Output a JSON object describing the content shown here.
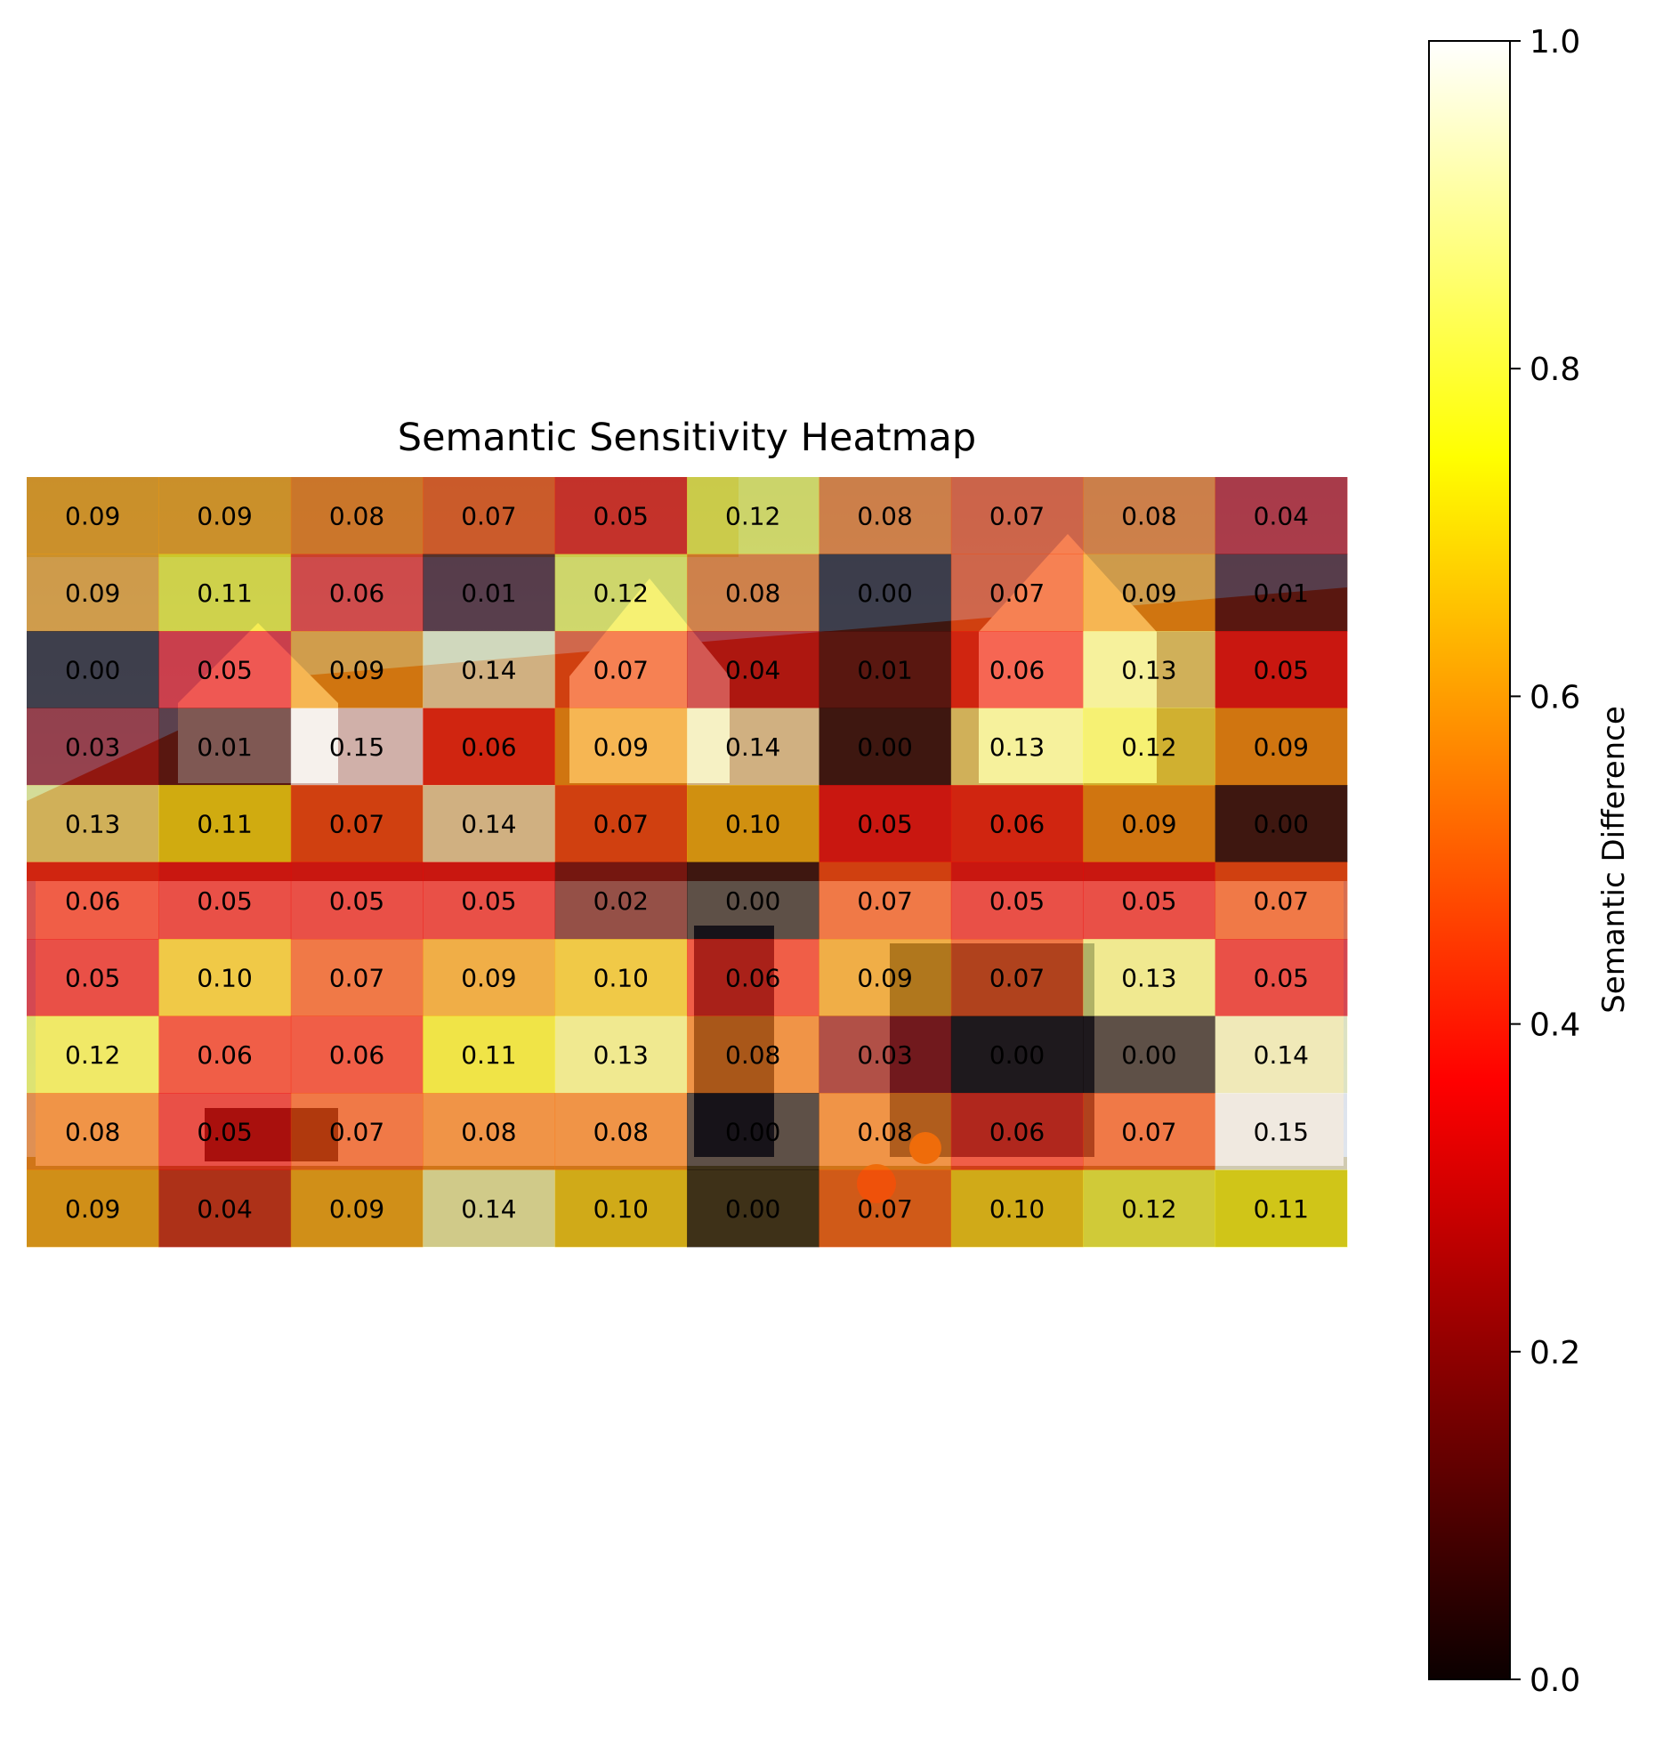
{
  "chart_data": {
    "type": "heatmap",
    "title": "Semantic Sensitivity Heatmap",
    "rows": 10,
    "cols": 10,
    "values": [
      [
        0.09,
        0.09,
        0.08,
        0.07,
        0.05,
        0.12,
        0.08,
        0.07,
        0.08,
        0.04
      ],
      [
        0.09,
        0.11,
        0.06,
        0.01,
        0.12,
        0.08,
        0.0,
        0.07,
        0.09,
        0.01
      ],
      [
        0.0,
        0.05,
        0.09,
        0.14,
        0.07,
        0.04,
        0.01,
        0.06,
        0.13,
        0.05
      ],
      [
        0.03,
        0.01,
        0.15,
        0.06,
        0.09,
        0.14,
        0.0,
        0.13,
        0.12,
        0.09
      ],
      [
        0.13,
        0.11,
        0.07,
        0.14,
        0.07,
        0.1,
        0.05,
        0.06,
        0.09,
        0.0
      ],
      [
        0.06,
        0.05,
        0.05,
        0.05,
        0.02,
        0.0,
        0.07,
        0.05,
        0.05,
        0.07
      ],
      [
        0.05,
        0.1,
        0.07,
        0.09,
        0.1,
        0.06,
        0.09,
        0.07,
        0.13,
        0.05
      ],
      [
        0.12,
        0.06,
        0.06,
        0.11,
        0.13,
        0.08,
        0.03,
        0.0,
        0.0,
        0.14
      ],
      [
        0.08,
        0.05,
        0.07,
        0.08,
        0.08,
        0.0,
        0.08,
        0.06,
        0.07,
        0.15
      ],
      [
        0.09,
        0.04,
        0.09,
        0.14,
        0.1,
        0.0,
        0.07,
        0.1,
        0.12,
        0.11
      ]
    ],
    "cell_labels": [
      [
        "0.09",
        "0.09",
        "0.08",
        "0.07",
        "0.05",
        "0.12",
        "0.08",
        "0.07",
        "0.08",
        "0.04"
      ],
      [
        "0.09",
        "0.11",
        "0.06",
        "0.01",
        "0.12",
        "0.08",
        "0.00",
        "0.07",
        "0.09",
        "0.01"
      ],
      [
        "0.00",
        "0.05",
        "0.09",
        "0.14",
        "0.07",
        "0.04",
        "0.01",
        "0.06",
        "0.13",
        "0.05"
      ],
      [
        "0.03",
        "0.01",
        "0.15",
        "0.06",
        "0.09",
        "0.14",
        "0.00",
        "0.13",
        "0.12",
        "0.09"
      ],
      [
        "0.13",
        "0.11",
        "0.07",
        "0.14",
        "0.07",
        "0.10",
        "0.05",
        "0.06",
        "0.09",
        "0.00"
      ],
      [
        "0.06",
        "0.05",
        "0.05",
        "0.05",
        "0.02",
        "0.00",
        "0.07",
        "0.05",
        "0.05",
        "0.07"
      ],
      [
        "0.05",
        "0.10",
        "0.07",
        "0.09",
        "0.10",
        "0.06",
        "0.09",
        "0.07",
        "0.13",
        "0.05"
      ],
      [
        "0.12",
        "0.06",
        "0.06",
        "0.11",
        "0.13",
        "0.08",
        "0.03",
        "0.00",
        "0.00",
        "0.14"
      ],
      [
        "0.08",
        "0.05",
        "0.07",
        "0.08",
        "0.08",
        "0.00",
        "0.08",
        "0.06",
        "0.07",
        "0.15"
      ],
      [
        "0.09",
        "0.04",
        "0.09",
        "0.14",
        "0.10",
        "0.00",
        "0.07",
        "0.10",
        "0.12",
        "0.11"
      ]
    ],
    "colormap": "hot",
    "colorbar": {
      "label": "Semantic Difference",
      "range": [
        0,
        1
      ],
      "ticks": [
        0.0,
        0.2,
        0.4,
        0.6,
        0.8,
        1.0
      ],
      "tick_labels": [
        "0.0",
        "0.2",
        "0.4",
        "0.6",
        "0.8",
        "1.0"
      ]
    },
    "background_image": "house-photo",
    "grid": false,
    "axes_visible": false
  }
}
